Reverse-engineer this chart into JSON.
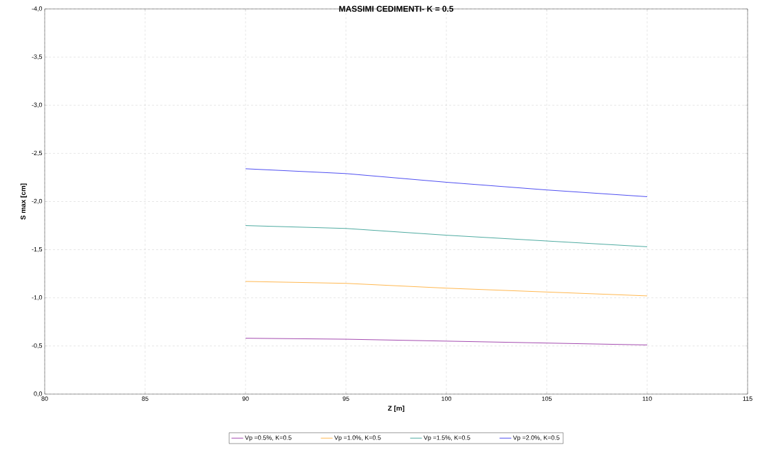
{
  "chart_data": {
    "type": "line",
    "title": "MASSIMI CEDIMENTI- K = 0.5",
    "xlabel": "Z [m]",
    "ylabel": "S max [cm]",
    "x": [
      90,
      95,
      100,
      105,
      110
    ],
    "series": [
      {
        "name": "Vp =0.5%, K=0.5",
        "color": "#8b1a9b",
        "values": [
          -0.58,
          -0.57,
          -0.55,
          -0.53,
          -0.51
        ]
      },
      {
        "name": "Vp =1.0%, K=0.5",
        "color": "#ffa522",
        "values": [
          -1.17,
          -1.15,
          -1.1,
          -1.06,
          -1.02
        ]
      },
      {
        "name": "Vp =1.5%, K=0.5",
        "color": "#1f9488",
        "values": [
          -1.75,
          -1.72,
          -1.65,
          -1.59,
          -1.53
        ]
      },
      {
        "name": "Vp =2.0%, K=0.5",
        "color": "#2020ee",
        "values": [
          -2.34,
          -2.29,
          -2.2,
          -2.12,
          -2.05
        ]
      }
    ],
    "xlim": [
      80,
      115
    ],
    "xticks": [
      80,
      85,
      90,
      95,
      100,
      105,
      110,
      115
    ],
    "ylim": [
      0,
      -4
    ],
    "yticks": [
      {
        "value": 0,
        "label": "0,0"
      },
      {
        "value": -0.5,
        "label": "-0,5"
      },
      {
        "value": -1,
        "label": "-1,0"
      },
      {
        "value": -1.5,
        "label": "-1,5"
      },
      {
        "value": -2,
        "label": "-2,0"
      },
      {
        "value": -2.5,
        "label": "-2,5"
      },
      {
        "value": -3,
        "label": "-3,0"
      },
      {
        "value": -3.5,
        "label": "-3,5"
      },
      {
        "value": -4,
        "label": "-4,0"
      }
    ],
    "grid": true,
    "legend": "bottom",
    "marker": "none",
    "line_style": "solid"
  }
}
